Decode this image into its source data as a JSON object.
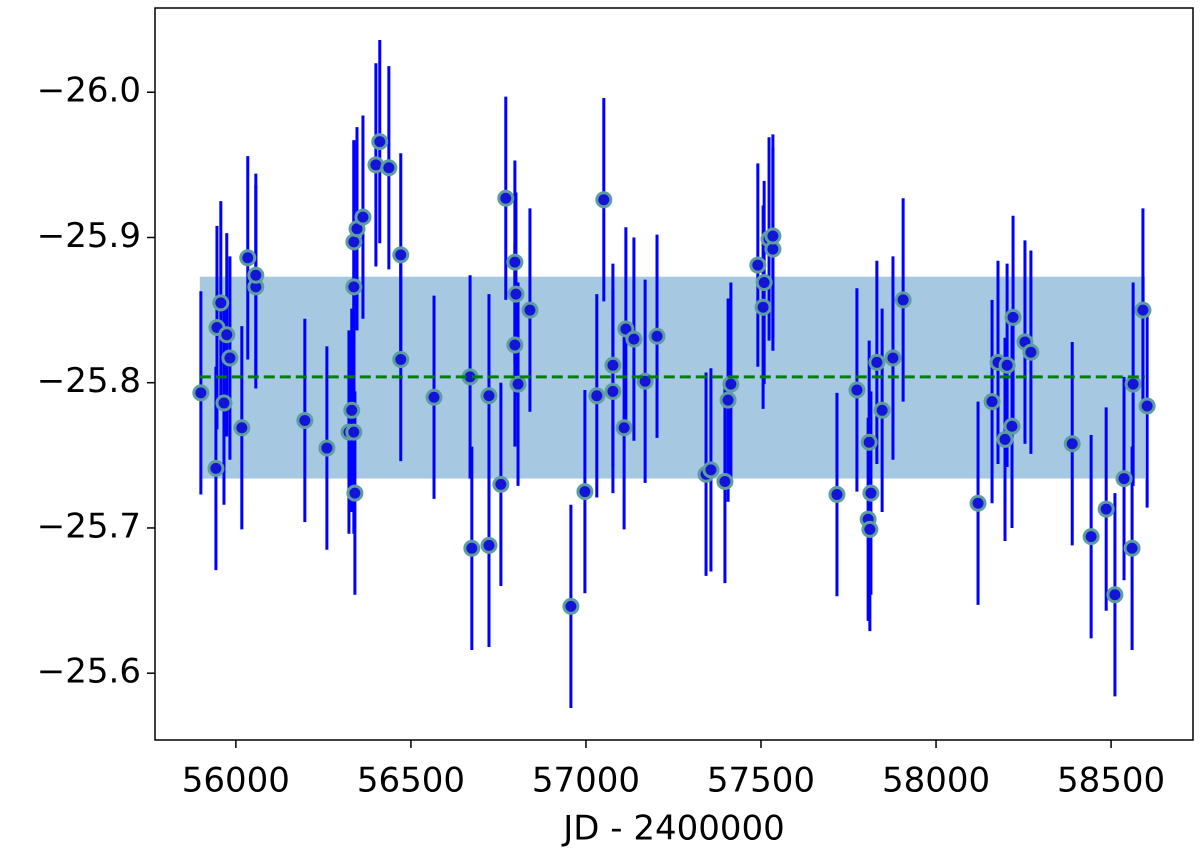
{
  "chart_data": {
    "type": "errorbar",
    "xlabel": "JD - 2400000",
    "xlim": [
      55769,
      58734
    ],
    "ylim": [
      -26.058,
      -25.554
    ],
    "invert_y": true,
    "xticks": [
      56000,
      56500,
      57000,
      57500,
      58000,
      58500
    ],
    "yticks": [
      {
        "value": -25.6,
        "label": "−25.6"
      },
      {
        "value": -25.7,
        "label": "−25.7"
      },
      {
        "value": -25.8,
        "label": "−25.8"
      },
      {
        "value": -25.9,
        "label": "−25.9"
      },
      {
        "value": -26.0,
        "label": "−26.0"
      }
    ],
    "band": {
      "x": [
        55897,
        58597
      ],
      "lower": -25.873,
      "upper": -25.734,
      "color": "#a6c8e1"
    },
    "mean_line": {
      "x": [
        55897,
        58597
      ],
      "value": -25.804,
      "color": "#008000"
    },
    "series": [
      {
        "color": "#1414d8",
        "edge_color": "#5f9ea0",
        "bar_color": "#0000ff",
        "x": [
          55900,
          55943,
          55946,
          55957,
          55966,
          55974,
          55983,
          56017,
          56034,
          56057,
          56057,
          56197,
          56260,
          56323,
          56331,
          56337,
          56340,
          56337,
          56337,
          56346,
          56363,
          56400,
          56411,
          56437,
          56471,
          56471,
          56566,
          56669,
          56674,
          56723,
          56723,
          56757,
          56771,
          56797,
          56797,
          56800,
          56806,
          56840,
          56957,
          56997,
          57031,
          57051,
          57077,
          57077,
          57109,
          57114,
          57137,
          57169,
          57203,
          57343,
          57357,
          57397,
          57406,
          57414,
          57491,
          57506,
          57509,
          57523,
          57534,
          57534,
          57717,
          57774,
          57806,
          57811,
          57814,
          57809,
          57831,
          57846,
          57877,
          57906,
          58120,
          58160,
          58177,
          58197,
          58203,
          58217,
          58220,
          58254,
          58271,
          58389,
          58443,
          58486,
          58511,
          58537,
          58560,
          58563,
          58591,
          58603
        ],
        "values": [
          -25.793,
          -25.741,
          -25.838,
          -25.855,
          -25.786,
          -25.833,
          -25.817,
          -25.769,
          -25.886,
          -25.866,
          -25.874,
          -25.774,
          -25.755,
          -25.766,
          -25.781,
          -25.766,
          -25.724,
          -25.866,
          -25.897,
          -25.906,
          -25.914,
          -25.95,
          -25.966,
          -25.948,
          -25.816,
          -25.888,
          -25.79,
          -25.804,
          -25.686,
          -25.688,
          -25.791,
          -25.73,
          -25.927,
          -25.826,
          -25.883,
          -25.861,
          -25.799,
          -25.85,
          -25.646,
          -25.725,
          -25.791,
          -25.926,
          -25.794,
          -25.812,
          -25.769,
          -25.837,
          -25.83,
          -25.801,
          -25.832,
          -25.737,
          -25.74,
          -25.732,
          -25.788,
          -25.799,
          -25.881,
          -25.852,
          -25.869,
          -25.899,
          -25.892,
          -25.901,
          -25.723,
          -25.795,
          -25.706,
          -25.699,
          -25.724,
          -25.759,
          -25.814,
          -25.781,
          -25.817,
          -25.857,
          -25.717,
          -25.787,
          -25.814,
          -25.761,
          -25.812,
          -25.77,
          -25.845,
          -25.828,
          -25.821,
          -25.758,
          -25.694,
          -25.713,
          -25.654,
          -25.734,
          -25.686,
          -25.799,
          -25.85,
          -25.784
        ],
        "errors": [
          0.07,
          0.07,
          0.07,
          0.07,
          0.07,
          0.07,
          0.07,
          0.07,
          0.07,
          0.07,
          0.07,
          0.07,
          0.07,
          0.07,
          0.07,
          0.07,
          0.07,
          0.1,
          0.07,
          0.07,
          0.07,
          0.07,
          0.07,
          0.07,
          0.07,
          0.07,
          0.07,
          0.07,
          0.07,
          0.07,
          0.07,
          0.07,
          0.07,
          0.07,
          0.07,
          0.07,
          0.07,
          0.07,
          0.07,
          0.07,
          0.07,
          0.07,
          0.07,
          0.07,
          0.07,
          0.07,
          0.07,
          0.07,
          0.07,
          0.07,
          0.07,
          0.07,
          0.07,
          0.07,
          0.07,
          0.07,
          0.07,
          0.07,
          0.07,
          0.07,
          0.07,
          0.07,
          0.07,
          0.07,
          0.07,
          0.07,
          0.07,
          0.07,
          0.07,
          0.07,
          0.07,
          0.07,
          0.07,
          0.07,
          0.07,
          0.07,
          0.07,
          0.07,
          0.07,
          0.07,
          0.07,
          0.07,
          0.07,
          0.07,
          0.07,
          0.07,
          0.07,
          0.07
        ]
      }
    ]
  }
}
